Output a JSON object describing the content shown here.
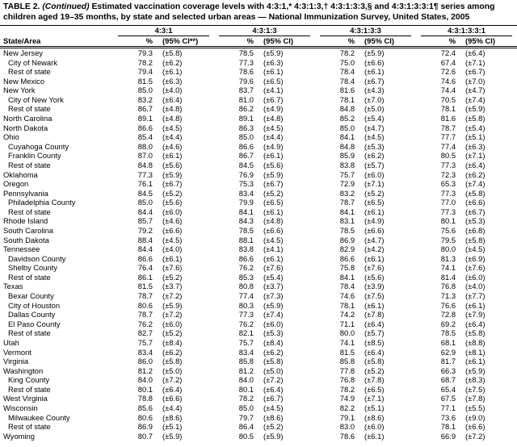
{
  "header": {
    "label": "TABLE 2.",
    "continued": "(Continued)",
    "title": "Estimated vaccination coverage levels with 4:3:1,* 4:3:1:3,† 4:3:1:3:3,§ and 4:3:1:3:3:1¶ series among children aged 19–35 months, by state and selected urban areas — National Immunization Survey, United States, 2005"
  },
  "table": {
    "column_groups": [
      "4:3:1",
      "4:3:1:3",
      "4:3:1:3:3",
      "4:3:1:3:3:1"
    ],
    "columns": [
      "State/Area",
      "%",
      "(95% CI**)",
      "%",
      "(95% CI)",
      "%",
      "(95% CI)",
      "%",
      "(95% CI)"
    ],
    "rows": [
      {
        "area": "New Jersey",
        "indent": false,
        "cells": [
          "79.3",
          "(±5.8)",
          "78.5",
          "(±5.9)",
          "78.2",
          "(±5.9)",
          "72.4",
          "(±6.4)"
        ]
      },
      {
        "area": "City of Newark",
        "indent": true,
        "cells": [
          "78.2",
          "(±6.2)",
          "77.3",
          "(±6.3)",
          "75.0",
          "(±6.6)",
          "67.4",
          "(±7.1)"
        ]
      },
      {
        "area": "Rest of state",
        "indent": true,
        "cells": [
          "79.4",
          "(±6.1)",
          "78.6",
          "(±6.1)",
          "78.4",
          "(±6.1)",
          "72.6",
          "(±6.7)"
        ]
      },
      {
        "area": "New Mexico",
        "indent": false,
        "cells": [
          "81.5",
          "(±6.3)",
          "79.6",
          "(±6.5)",
          "78.4",
          "(±6.7)",
          "74.6",
          "(±7.0)"
        ]
      },
      {
        "area": "New York",
        "indent": false,
        "cells": [
          "85.0",
          "(±4.0)",
          "83.7",
          "(±4.1)",
          "81.6",
          "(±4.3)",
          "74.4",
          "(±4.7)"
        ]
      },
      {
        "area": "City of New York",
        "indent": true,
        "cells": [
          "83.2",
          "(±6.4)",
          "81.0",
          "(±6.7)",
          "78.1",
          "(±7.0)",
          "70.5",
          "(±7.4)"
        ]
      },
      {
        "area": "Rest of state",
        "indent": true,
        "cells": [
          "86.7",
          "(±4.8)",
          "86.2",
          "(±4.9)",
          "84.8",
          "(±5.0)",
          "78.1",
          "(±5.9)"
        ]
      },
      {
        "area": "North Carolina",
        "indent": false,
        "cells": [
          "89.1",
          "(±4.8)",
          "89.1",
          "(±4.8)",
          "85.2",
          "(±5.4)",
          "81.6",
          "(±5.8)"
        ]
      },
      {
        "area": "North Dakota",
        "indent": false,
        "cells": [
          "86.6",
          "(±4.5)",
          "86.3",
          "(±4.5)",
          "85.0",
          "(±4.7)",
          "78.7",
          "(±5.4)"
        ]
      },
      {
        "area": "Ohio",
        "indent": false,
        "cells": [
          "85.4",
          "(±4.4)",
          "85.0",
          "(±4.4)",
          "84.1",
          "(±4.5)",
          "77.7",
          "(±5.1)"
        ]
      },
      {
        "area": "Cuyahoga County",
        "indent": true,
        "cells": [
          "88.0",
          "(±4.6)",
          "86.6",
          "(±4.9)",
          "84.8",
          "(±5.3)",
          "77.4",
          "(±6.3)"
        ]
      },
      {
        "area": "Franklin County",
        "indent": true,
        "cells": [
          "87.0",
          "(±6.1)",
          "86.7",
          "(±6.1)",
          "85.9",
          "(±6.2)",
          "80.5",
          "(±7.1)"
        ]
      },
      {
        "area": "Rest of state",
        "indent": true,
        "cells": [
          "84.8",
          "(±5.6)",
          "84.5",
          "(±5.6)",
          "83.8",
          "(±5.7)",
          "77.3",
          "(±6.4)"
        ]
      },
      {
        "area": "Oklahoma",
        "indent": false,
        "cells": [
          "77.3",
          "(±5.9)",
          "76.9",
          "(±5.9)",
          "75.7",
          "(±6.0)",
          "72.3",
          "(±6.2)"
        ]
      },
      {
        "area": "Oregon",
        "indent": false,
        "cells": [
          "76.1",
          "(±6.7)",
          "75.3",
          "(±6.7)",
          "72.9",
          "(±7.1)",
          "65.3",
          "(±7.4)"
        ]
      },
      {
        "area": "Pennsylvania",
        "indent": false,
        "cells": [
          "84.5",
          "(±5.2)",
          "83.4",
          "(±5.2)",
          "83.2",
          "(±5.2)",
          "77.3",
          "(±5.8)"
        ]
      },
      {
        "area": "Philadelphia County",
        "indent": true,
        "cells": [
          "85.0",
          "(±5.6)",
          "79.9",
          "(±6.5)",
          "78.7",
          "(±6.5)",
          "77.0",
          "(±6.6)"
        ]
      },
      {
        "area": "Rest of state",
        "indent": true,
        "cells": [
          "84.4",
          "(±6.0)",
          "84.1",
          "(±6.1)",
          "84.1",
          "(±6.1)",
          "77.3",
          "(±6.7)"
        ]
      },
      {
        "area": "Rhode Island",
        "indent": false,
        "cells": [
          "85.7",
          "(±4.6)",
          "84.3",
          "(±4.8)",
          "83.1",
          "(±4.9)",
          "80.1",
          "(±5.3)"
        ]
      },
      {
        "area": "South Carolina",
        "indent": false,
        "cells": [
          "79.2",
          "(±6.6)",
          "78.5",
          "(±6.6)",
          "78.5",
          "(±6.6)",
          "75.6",
          "(±6.8)"
        ]
      },
      {
        "area": "South Dakota",
        "indent": false,
        "cells": [
          "88.4",
          "(±4.5)",
          "88.1",
          "(±4.5)",
          "86.9",
          "(±4.7)",
          "79.5",
          "(±5.8)"
        ]
      },
      {
        "area": "Tennessee",
        "indent": false,
        "cells": [
          "84.4",
          "(±4.0)",
          "83.8",
          "(±4.1)",
          "82.9",
          "(±4.2)",
          "80.0",
          "(±4.5)"
        ]
      },
      {
        "area": "Davidson County",
        "indent": true,
        "cells": [
          "86.6",
          "(±6.1)",
          "86.6",
          "(±6.1)",
          "86.6",
          "(±6.1)",
          "81.3",
          "(±6.9)"
        ]
      },
      {
        "area": "Shelby County",
        "indent": true,
        "cells": [
          "76.4",
          "(±7.6)",
          "76.2",
          "(±7.6)",
          "75.8",
          "(±7.6)",
          "74.1",
          "(±7.6)"
        ]
      },
      {
        "area": "Rest of state",
        "indent": true,
        "cells": [
          "86.1",
          "(±5.2)",
          "85.3",
          "(±5.4)",
          "84.1",
          "(±5.6)",
          "81.4",
          "(±6.0)"
        ]
      },
      {
        "area": "Texas",
        "indent": false,
        "cells": [
          "81.5",
          "(±3.7)",
          "80.8",
          "(±3.7)",
          "78.4",
          "(±3.9)",
          "76.8",
          "(±4.0)"
        ]
      },
      {
        "area": "Bexar County",
        "indent": true,
        "cells": [
          "78.7",
          "(±7.2)",
          "77.4",
          "(±7.3)",
          "74.6",
          "(±7.5)",
          "71.3",
          "(±7.7)"
        ]
      },
      {
        "area": "City of Houston",
        "indent": true,
        "cells": [
          "80.6",
          "(±5.9)",
          "80.3",
          "(±5.9)",
          "78.1",
          "(±6.1)",
          "76.6",
          "(±6.1)"
        ]
      },
      {
        "area": "Dallas County",
        "indent": true,
        "cells": [
          "78.7",
          "(±7.2)",
          "77.3",
          "(±7.4)",
          "74.2",
          "(±7.8)",
          "72.8",
          "(±7.9)"
        ]
      },
      {
        "area": "El Paso County",
        "indent": true,
        "cells": [
          "76.2",
          "(±6.0)",
          "76.2",
          "(±6.0)",
          "71.1",
          "(±6.4)",
          "69.2",
          "(±6.4)"
        ]
      },
      {
        "area": "Rest of state",
        "indent": true,
        "cells": [
          "82.7",
          "(±5.2)",
          "82.1",
          "(±5.3)",
          "80.0",
          "(±5.7)",
          "78.5",
          "(±5.8)"
        ]
      },
      {
        "area": "Utah",
        "indent": false,
        "cells": [
          "75.7",
          "(±8.4)",
          "75.7",
          "(±8.4)",
          "74.1",
          "(±8.5)",
          "68.1",
          "(±8.8)"
        ]
      },
      {
        "area": "Vermont",
        "indent": false,
        "cells": [
          "83.4",
          "(±6.2)",
          "83.4",
          "(±6.2)",
          "81.5",
          "(±6.4)",
          "62.9",
          "(±8.1)"
        ]
      },
      {
        "area": "Virginia",
        "indent": false,
        "cells": [
          "86.0",
          "(±5.8)",
          "85.8",
          "(±5.8)",
          "85.8",
          "(±5.8)",
          "81.7",
          "(±6.1)"
        ]
      },
      {
        "area": "Washington",
        "indent": false,
        "cells": [
          "81.2",
          "(±5.0)",
          "81.2",
          "(±5.0)",
          "77.8",
          "(±5.2)",
          "66.3",
          "(±5.9)"
        ]
      },
      {
        "area": "King County",
        "indent": true,
        "cells": [
          "84.0",
          "(±7.2)",
          "84.0",
          "(±7.2)",
          "76.8",
          "(±7.8)",
          "68.7",
          "(±8.3)"
        ]
      },
      {
        "area": "Rest of state",
        "indent": true,
        "cells": [
          "80.1",
          "(±6.4)",
          "80.1",
          "(±6.4)",
          "78.2",
          "(±6.5)",
          "65.4",
          "(±7.5)"
        ]
      },
      {
        "area": "West Virginia",
        "indent": false,
        "cells": [
          "78.8",
          "(±6.6)",
          "78.2",
          "(±6.7)",
          "74.9",
          "(±7.1)",
          "67.5",
          "(±7.8)"
        ]
      },
      {
        "area": "Wisconsin",
        "indent": false,
        "cells": [
          "85.6",
          "(±4.4)",
          "85.0",
          "(±4.5)",
          "82.2",
          "(±5.1)",
          "77.1",
          "(±5.5)"
        ]
      },
      {
        "area": "Milwaukee County",
        "indent": true,
        "cells": [
          "80.6",
          "(±8.6)",
          "79.7",
          "(±8.6)",
          "79.1",
          "(±8.6)",
          "73.6",
          "(±9.0)"
        ]
      },
      {
        "area": "Rest of state",
        "indent": true,
        "cells": [
          "86.9",
          "(±5.1)",
          "86.4",
          "(±5.2)",
          "83.0",
          "(±6.0)",
          "78.1",
          "(±6.6)"
        ]
      },
      {
        "area": "Wyoming",
        "indent": false,
        "cells": [
          "80.7",
          "(±5.9)",
          "80.5",
          "(±5.9)",
          "78.6",
          "(±6.1)",
          "66.9",
          "(±7.2)"
        ]
      }
    ]
  }
}
